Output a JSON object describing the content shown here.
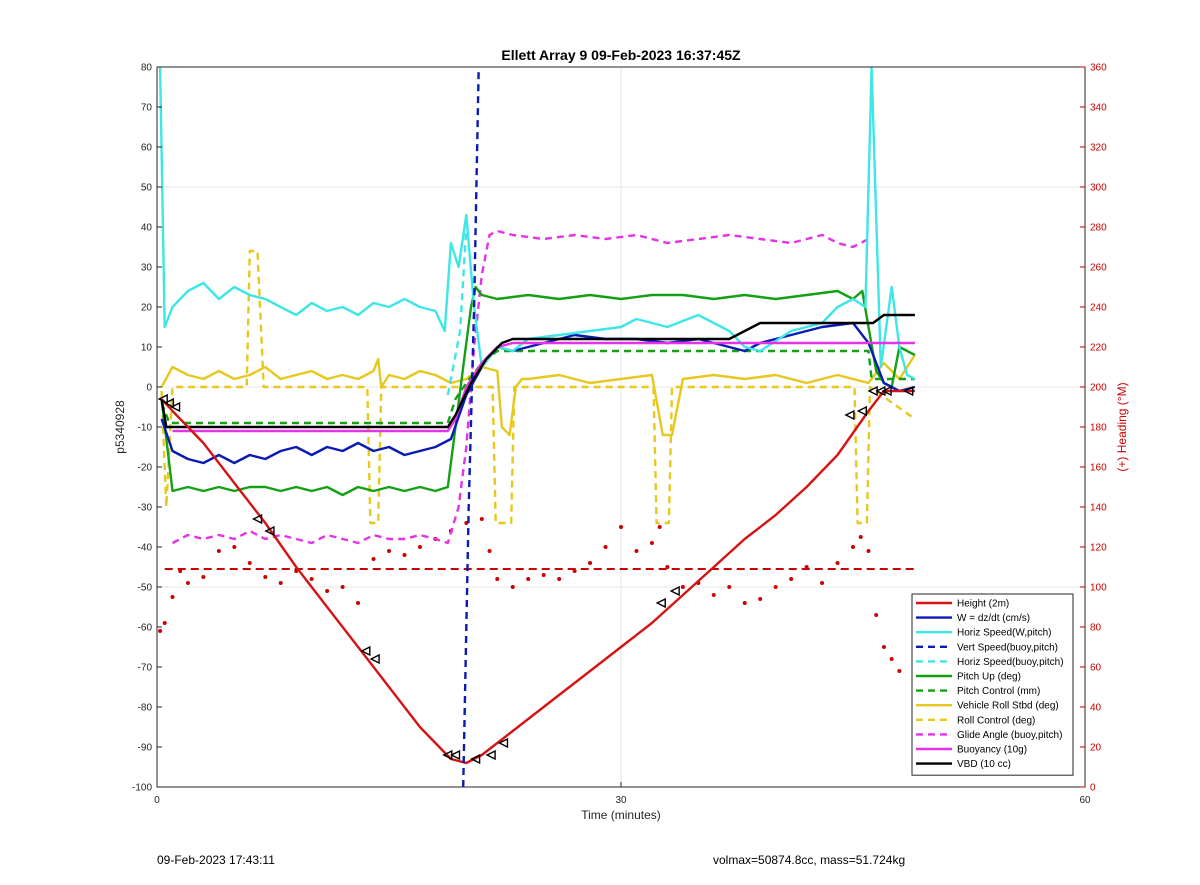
{
  "footer": {
    "timestamp": "09-Feb-2023 17:43:11",
    "mass_info": "volmax=50874.8cc, mass=51.724kg"
  },
  "chart_data": {
    "type": "line",
    "title": "Ellett Array 9 09-Feb-2023 16:37:45Z",
    "xlabel": "Time (minutes)",
    "ylabel": "p5340928",
    "y2label": "(+) Heading (°M)",
    "xlim": [
      0,
      60
    ],
    "ylim": [
      -100,
      80
    ],
    "y2lim": [
      0,
      360
    ],
    "xticks": [
      0,
      30,
      60
    ],
    "yticks": [
      -100,
      -90,
      -80,
      -70,
      -60,
      -50,
      -40,
      -30,
      -20,
      -10,
      0,
      10,
      20,
      30,
      40,
      50,
      60,
      70,
      80
    ],
    "y2ticks": [
      0,
      20,
      40,
      60,
      80,
      100,
      120,
      140,
      160,
      180,
      200,
      220,
      240,
      260,
      280,
      300,
      320,
      340,
      360
    ],
    "grid": true,
    "legend_position": "bottom-right",
    "colors": {
      "red": "#d41414",
      "blue": "#0a1ab4",
      "cyan": "#3ee6e6",
      "green": "#14a014",
      "gold": "#e6c81e",
      "magenta": "#e632e6",
      "black": "#000000",
      "heading": "#cc0000"
    },
    "series": [
      {
        "name": "Height (2m)",
        "color": "red",
        "style": "solid",
        "x": [
          0.3,
          1,
          3,
          5,
          7,
          9,
          11,
          13,
          15,
          17,
          19,
          20,
          21,
          22,
          24,
          26,
          28,
          30,
          32,
          34,
          36,
          38,
          40,
          42,
          44,
          46,
          47,
          49
        ],
        "y": [
          -3,
          -6,
          -14,
          -24,
          -34,
          -45,
          -55,
          -65,
          -75,
          -85,
          -93,
          -94,
          -92,
          -89,
          -83,
          -77,
          -71,
          -65,
          -59,
          -52,
          -45,
          -38,
          -32,
          -25,
          -17,
          -6,
          -1,
          -1
        ]
      },
      {
        "name": "W = dz/dt (cm/s)",
        "color": "blue",
        "style": "solid",
        "x": [
          0.3,
          1,
          2,
          3,
          4,
          5,
          6,
          7,
          8,
          9,
          10,
          11,
          12,
          13,
          14,
          15,
          16,
          17,
          18,
          19,
          20,
          21,
          22,
          23,
          25,
          27,
          29,
          31,
          33,
          35,
          37,
          38,
          39,
          41,
          43,
          45,
          46,
          47,
          48,
          49
        ],
        "y": [
          -8,
          -16,
          -18,
          -19,
          -17,
          -19,
          -17,
          -18,
          -16,
          -15,
          -17,
          -15,
          -16,
          -14,
          -16,
          -15,
          -17,
          -16,
          -15,
          -13,
          -2,
          5,
          10,
          9,
          11,
          13,
          12,
          12,
          11,
          12,
          10,
          9,
          11,
          13,
          15,
          16,
          11,
          1,
          -1,
          0
        ]
      },
      {
        "name": "Horiz Speed(W,pitch)",
        "color": "cyan",
        "style": "solid",
        "x": [
          0.2,
          0.5,
          1,
          2,
          3,
          4,
          5,
          6,
          7,
          8,
          9,
          10,
          11,
          12,
          13,
          14,
          15,
          16,
          17,
          18,
          18.6,
          19,
          19.5,
          20,
          20.5,
          21,
          22,
          23,
          24,
          26,
          28,
          30,
          31,
          33,
          35,
          36,
          37,
          38,
          39,
          41,
          43,
          44,
          45,
          45.8,
          46.2,
          46.8,
          47.5,
          48,
          48.5,
          49
        ],
        "y": [
          80,
          15,
          20,
          24,
          26,
          22,
          25,
          23,
          22,
          20,
          18,
          21,
          19,
          20,
          18,
          21,
          20,
          22,
          20,
          19,
          14,
          36,
          30,
          43,
          20,
          5,
          10,
          9,
          12,
          13,
          14,
          15,
          17,
          15,
          18,
          16,
          14,
          10,
          9,
          14,
          16,
          20,
          22,
          20,
          80,
          5,
          25,
          10,
          3,
          2
        ]
      },
      {
        "name": "Vert Speed(buoy,pitch)",
        "color": "blue",
        "style": "dashed",
        "x": [
          19.8,
          20.15,
          20.5,
          20.8
        ],
        "y": [
          -100,
          -30,
          20,
          80
        ]
      },
      {
        "name": "Horiz Speed(buoy,pitch)",
        "color": "cyan",
        "style": "dashed",
        "x": [
          18.8,
          19.2,
          19.6,
          20.0
        ],
        "y": [
          -2,
          6,
          14,
          40
        ]
      },
      {
        "name": "Pitch Up (deg)",
        "color": "green",
        "style": "solid",
        "x": [
          0.3,
          1,
          2,
          3,
          4,
          5,
          6,
          7,
          8,
          9,
          10,
          11,
          12,
          13,
          14,
          15,
          16,
          17,
          18,
          18.8,
          19.3,
          19.8,
          20.3,
          20.6,
          21,
          22,
          24,
          26,
          28,
          30,
          32,
          34,
          36,
          38,
          40,
          42,
          44,
          45,
          45.6,
          46,
          46.5,
          47,
          47.5,
          48,
          49
        ],
        "y": [
          -3,
          -26,
          -25,
          -26,
          -25,
          -26,
          -25,
          -25,
          -26,
          -25,
          -26,
          -25,
          -27,
          -25,
          -26,
          -25,
          -26,
          -25,
          -26,
          -25,
          -10,
          5,
          20,
          25,
          23,
          22,
          23,
          22,
          23,
          22,
          23,
          23,
          22,
          23,
          22,
          23,
          24,
          22,
          24,
          15,
          4,
          1,
          0,
          10,
          8
        ]
      },
      {
        "name": "Pitch Control (mm)",
        "color": "green",
        "style": "dashed",
        "x": [
          0.3,
          0.8,
          18.8,
          19.3,
          20,
          21,
          22,
          23,
          46,
          46.2,
          49
        ],
        "y": [
          -4,
          -9,
          -9,
          -3,
          1,
          6,
          9,
          9,
          9,
          2,
          2
        ]
      },
      {
        "name": "Vehicle Roll Stbd (deg)",
        "color": "gold",
        "style": "solid",
        "x": [
          0.3,
          1,
          2,
          3,
          4,
          5,
          6,
          7,
          8,
          9,
          10,
          11,
          12,
          13,
          14,
          14.3,
          14.5,
          15,
          16,
          17,
          18,
          19,
          20,
          21,
          22,
          22.3,
          22.8,
          23.2,
          23.6,
          24,
          26,
          28,
          30,
          32,
          32.7,
          33.3,
          34,
          36,
          38,
          40,
          42,
          44,
          45,
          46,
          47,
          48,
          49
        ],
        "y": [
          0,
          5,
          3,
          2,
          4,
          2,
          3,
          5,
          2,
          3,
          4,
          2,
          3,
          2,
          4,
          7,
          0,
          3,
          2,
          4,
          3,
          1,
          2,
          5,
          4,
          -10,
          -12,
          0,
          2,
          2,
          3,
          1,
          2,
          3,
          -12,
          -12,
          2,
          3,
          2,
          3,
          1,
          3,
          2,
          1,
          6,
          2,
          8
        ]
      },
      {
        "name": "Roll Control (deg)",
        "color": "gold",
        "style": "dashed",
        "x": [
          0.3,
          0.6,
          1,
          5.8,
          6.0,
          6.5,
          6.9,
          7.1,
          13.6,
          13.8,
          14.3,
          14.5,
          21.7,
          21.9,
          22.9,
          23.1,
          32.1,
          32.3,
          33.1,
          33.3,
          45.1,
          45.3,
          45.9,
          46.1,
          49
        ],
        "y": [
          -1,
          -30,
          0,
          0,
          34,
          34,
          0,
          0,
          0,
          -34,
          -34,
          0,
          0,
          -34,
          -34,
          0,
          0,
          -34,
          -34,
          0,
          0,
          -34,
          -34,
          0,
          -8
        ]
      },
      {
        "name": "Glide Angle (buoy,pitch)",
        "color": "magenta",
        "style": "dashed",
        "x": [
          1,
          2,
          3,
          4,
          5,
          6,
          7,
          8,
          9,
          10,
          11,
          12,
          13,
          14,
          15,
          16,
          17,
          18,
          18.8,
          19.5,
          20,
          20.5,
          21,
          21.5,
          22,
          23,
          25,
          27,
          29,
          31,
          33,
          35,
          37,
          39,
          41,
          43,
          44,
          45,
          46
        ],
        "y": [
          -39,
          -37,
          -38,
          -37,
          -38,
          -36,
          -38,
          -37,
          -38,
          -39,
          -37,
          -38,
          -39,
          -37,
          -38,
          -38,
          -37,
          -38,
          -39,
          -30,
          -15,
          10,
          28,
          38,
          39,
          38,
          37,
          38,
          37,
          38,
          36,
          37,
          38,
          37,
          36,
          38,
          36,
          35,
          37
        ]
      },
      {
        "name": "Buoyancy (10g)",
        "color": "magenta",
        "style": "solid",
        "x": [
          1,
          18.8,
          19.3,
          20,
          21,
          22,
          23,
          49
        ],
        "y": [
          -11,
          -11,
          -8,
          0,
          6,
          10,
          11,
          11
        ]
      },
      {
        "name": "VBD (10 cc)",
        "color": "black",
        "style": "solid",
        "x": [
          0.3,
          0.6,
          18.8,
          19.3,
          19.8,
          20.3,
          20.8,
          21.3,
          21.8,
          22.3,
          23,
          37,
          37.5,
          38,
          38.5,
          39,
          46.3,
          47,
          49
        ],
        "y": [
          -3,
          -10,
          -10,
          -7,
          -3,
          1,
          4,
          7,
          9,
          11,
          12,
          12,
          13,
          14,
          15,
          16,
          16,
          18,
          18
        ]
      }
    ],
    "heading": {
      "axis": "right",
      "color": "heading",
      "dotted_x": [
        0.2,
        0.5,
        1,
        1.5,
        2,
        3,
        4,
        5,
        6,
        7,
        8,
        9,
        10,
        11,
        12,
        13,
        14,
        15,
        16,
        17,
        18,
        19,
        20,
        21,
        21.5,
        22,
        23,
        24,
        25,
        26,
        27,
        28,
        29,
        30,
        31,
        32,
        32.5,
        33,
        34,
        35,
        36,
        37,
        38,
        39,
        40,
        41,
        42,
        43,
        44,
        45,
        45.5,
        46,
        46.5,
        47,
        47.5,
        48,
        49
      ],
      "dotted_y": [
        78,
        82,
        95,
        108,
        102,
        105,
        118,
        120,
        112,
        105,
        102,
        108,
        104,
        98,
        100,
        92,
        114,
        118,
        116,
        120,
        124,
        128,
        132,
        134,
        118,
        104,
        100,
        104,
        106,
        104,
        108,
        112,
        120,
        130,
        118,
        122,
        130,
        110,
        100,
        102,
        96,
        100,
        92,
        94,
        100,
        104,
        110,
        102,
        112,
        120,
        125,
        118,
        86,
        70,
        64,
        58,
        30
      ],
      "mean_heading": 109
    },
    "markers": {
      "x": [
        0.4,
        0.8,
        1.2,
        6.5,
        7.3,
        13.5,
        14.1,
        18.8,
        19.3,
        20.6,
        21.6,
        22.4,
        32.6,
        33.5,
        44.8,
        45.6,
        46.3,
        46.8,
        47.2,
        48.6
      ],
      "y": [
        -3,
        -4,
        -5,
        -33,
        -36,
        -66,
        -68,
        -92,
        -92,
        -93,
        -92,
        -89,
        -54,
        -51,
        -7,
        -6,
        -1,
        -1,
        -1,
        -1
      ]
    }
  }
}
